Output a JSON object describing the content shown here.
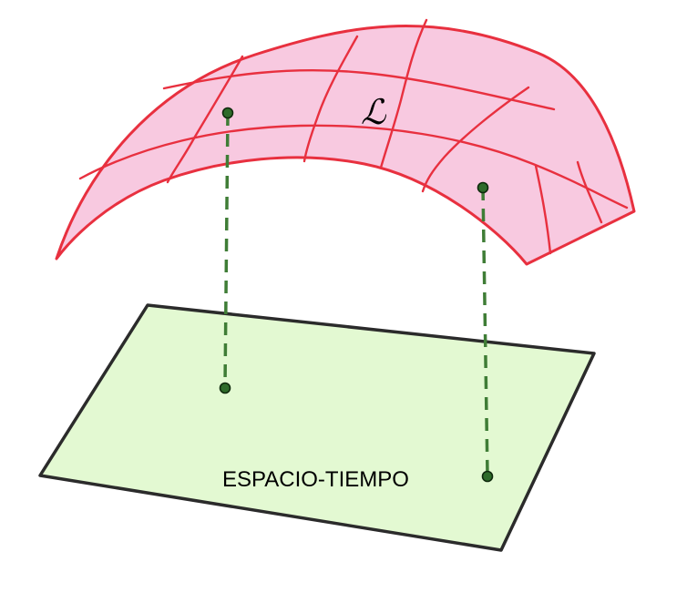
{
  "diagram": {
    "surface_label": "ℒ",
    "plane_label": "ESPACIO-TIEMPO"
  },
  "colors": {
    "surface_fill": "#f8c9e0",
    "surface_stroke": "#e8303f",
    "plane_fill": "#e3f9d2",
    "plane_stroke": "#2b2b2b",
    "projection_line": "#3f7d36",
    "point": "#2e6b2a"
  }
}
